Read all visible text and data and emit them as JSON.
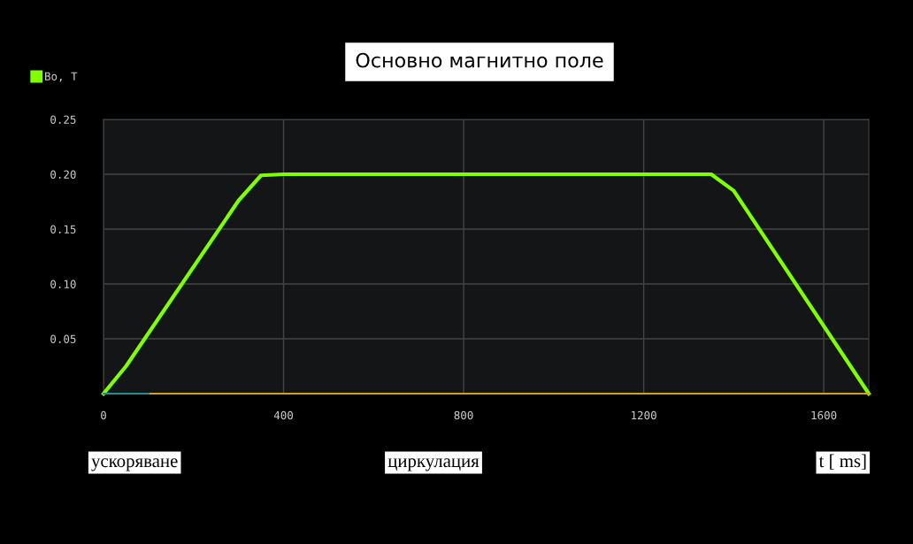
{
  "chart_data": {
    "type": "line",
    "title": "Основно магнитно поле",
    "x": [
      0,
      50,
      300,
      350,
      400,
      1350,
      1400,
      1700
    ],
    "series": [
      {
        "name": "Bo, T",
        "color": "#7fff00",
        "values": [
          0,
          0.025,
          0.176,
          0.199,
          0.2,
          0.2,
          0.185,
          0
        ]
      },
      {
        "color": "#d4a017",
        "x": [
          0,
          1700
        ],
        "values": [
          0,
          0
        ]
      },
      {
        "color": "#2a8a8a",
        "x": [
          0,
          100
        ],
        "values": [
          0,
          0
        ]
      }
    ],
    "xlim": [
      0,
      1700
    ],
    "xticks": [
      0,
      400,
      800,
      1200,
      1600
    ],
    "ylim": [
      0,
      0.25
    ],
    "yticks": [
      {
        "value": 0.05,
        "label": "0.05"
      },
      {
        "value": 0.1,
        "label": "0.10"
      },
      {
        "value": 0.15,
        "label": "0.15"
      },
      {
        "value": 0.2,
        "label": "0.20"
      },
      {
        "value": 0.25,
        "label": "0.25"
      }
    ],
    "grid": true,
    "legend": "top left",
    "annotations": [
      "ускоряване",
      "циркулация",
      "t [ ms]"
    ]
  }
}
